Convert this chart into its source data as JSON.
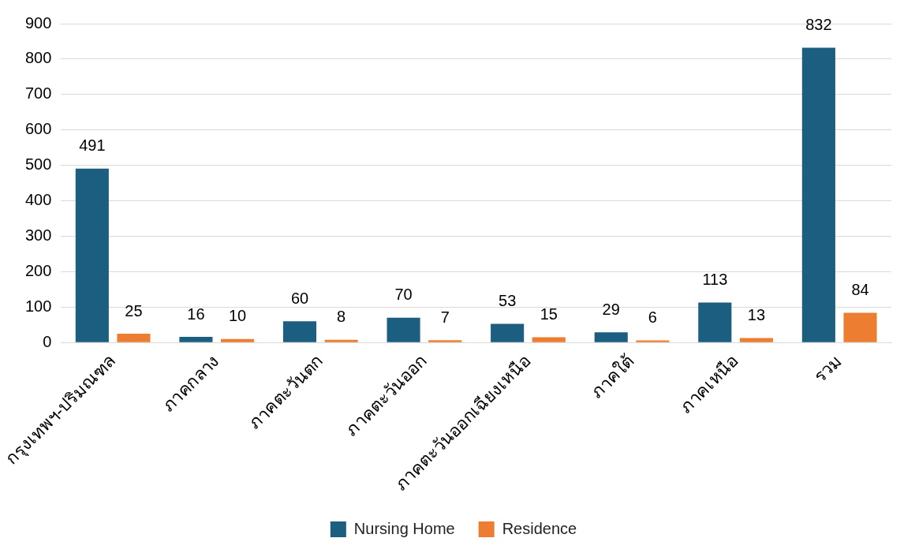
{
  "chart_data": {
    "type": "bar",
    "categories": [
      "กรุงเทพฯ-ปริมณฑล",
      "ภาคกลาง",
      "ภาคตะวันตก",
      "ภาคตะวันออก",
      "ภาคตะวันออกเฉียงเหนือ",
      "ภาคใต้",
      "ภาคเหนือ",
      "รวม"
    ],
    "series": [
      {
        "name": "Nursing Home",
        "color": "#1b5e80",
        "values": [
          491,
          16,
          60,
          70,
          53,
          29,
          113,
          832
        ]
      },
      {
        "name": "Residence",
        "color": "#ed7d31",
        "values": [
          25,
          10,
          8,
          7,
          15,
          6,
          13,
          84
        ]
      }
    ],
    "ylim": [
      0,
      900
    ],
    "yticks": [
      0,
      100,
      200,
      300,
      400,
      500,
      600,
      700,
      800,
      900
    ],
    "grid": "y",
    "legend": "bottom",
    "data_labels": true
  }
}
